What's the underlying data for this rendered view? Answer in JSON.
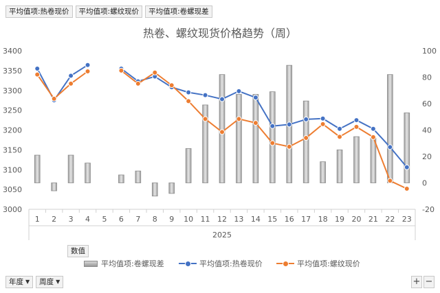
{
  "field_buttons": [
    "平均值项:热卷现价",
    "平均值项:螺纹现价",
    "平均值项:卷螺现差"
  ],
  "values_button": "数值",
  "row_filters": [
    {
      "label": "年度",
      "icon": "filter-icon"
    },
    {
      "label": "周度",
      "icon": "dropdown-arrow-icon"
    }
  ],
  "zoom": {
    "plus": "+",
    "minus": "−"
  },
  "chart_data": {
    "type": "bar+line",
    "title": "热卷、螺纹现货价格趋势（周）",
    "categories": [
      "1",
      "2",
      "3",
      "4",
      "5",
      "6",
      "7",
      "8",
      "9",
      "10",
      "11",
      "12",
      "13",
      "14",
      "15",
      "16",
      "17",
      "18",
      "19",
      "20",
      "21",
      "22",
      "23"
    ],
    "group_label": "2025",
    "y_left": {
      "min": 3000,
      "max": 3400,
      "ticks": [
        3000,
        3050,
        3100,
        3150,
        3200,
        3250,
        3300,
        3350,
        3400
      ]
    },
    "y_right": {
      "min": -20,
      "max": 100,
      "ticks": [
        -20,
        0,
        20,
        40,
        60,
        80,
        100
      ]
    },
    "grid": false,
    "legend_position": "bottom",
    "series": [
      {
        "name": "平均值项:卷螺现差",
        "type": "bar",
        "axis": "right",
        "color": "#a6a6a6",
        "values": [
          21,
          -6,
          21,
          15,
          null,
          6,
          9,
          -10,
          -8,
          26,
          59,
          82,
          67,
          67,
          69,
          89,
          62,
          16,
          25,
          35,
          34,
          82,
          53
        ]
      },
      {
        "name": "平均值项:热卷现价",
        "type": "line",
        "axis": "left",
        "color": "#4472c4",
        "values": [
          3355,
          3275,
          3337,
          3364,
          null,
          3355,
          3323,
          3335,
          3308,
          3295,
          3288,
          3278,
          3298,
          3282,
          3210,
          3214,
          3227,
          3229,
          3203,
          3225,
          3203,
          3157,
          3106
        ]
      },
      {
        "name": "平均值项:螺纹现价",
        "type": "line",
        "axis": "left",
        "color": "#ed7d31",
        "values": [
          3340,
          3279,
          3317,
          3348,
          null,
          3350,
          3317,
          3345,
          3313,
          3273,
          3228,
          3195,
          3228,
          3218,
          3167,
          3158,
          3180,
          3215,
          3183,
          3208,
          3182,
          3072,
          3052
        ]
      }
    ]
  }
}
